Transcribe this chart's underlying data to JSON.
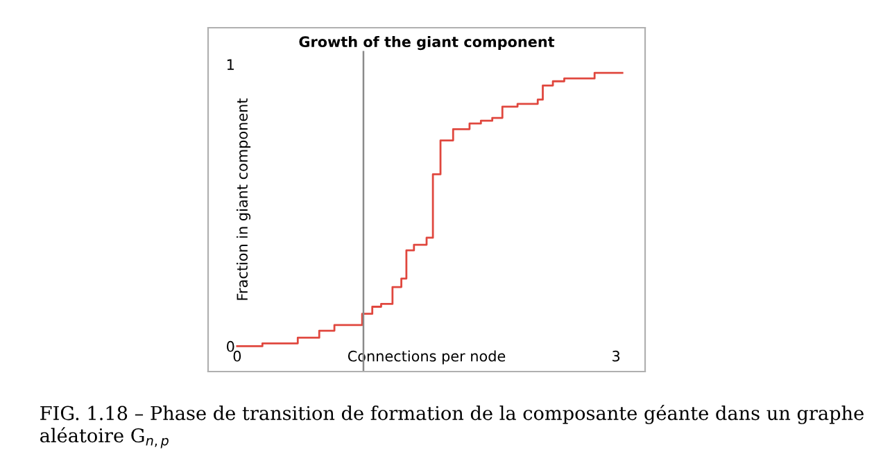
{
  "chart_data": {
    "type": "step",
    "title": "Growth of the giant component",
    "xlabel": "Connections per node",
    "ylabel": "Fraction in giant component",
    "x": [
      0,
      0.2,
      0.48,
      0.65,
      0.77,
      0.99,
      1.07,
      1.14,
      1.23,
      1.3,
      1.34,
      1.4,
      1.45,
      1.5,
      1.55,
      1.61,
      1.71,
      1.84,
      1.93,
      2.02,
      2.1,
      2.22,
      2.38,
      2.42,
      2.5,
      2.59,
      2.83,
      3.05
    ],
    "series": [
      {
        "color": "#e0473e",
        "values": [
          0,
          0.01,
          0.03,
          0.055,
          0.075,
          0.115,
          0.14,
          0.15,
          0.21,
          0.24,
          0.34,
          0.36,
          0.36,
          0.385,
          0.61,
          0.73,
          0.77,
          0.79,
          0.8,
          0.81,
          0.85,
          0.86,
          0.875,
          0.925,
          0.94,
          0.95,
          0.97,
          0.97
        ]
      }
    ],
    "xlim": [
      -0.23,
      3.23
    ],
    "ylim": [
      -0.09,
      1.13
    ],
    "xticks": [
      0,
      3
    ],
    "yticks": [
      0,
      1
    ],
    "ref_lines": [
      {
        "axis": "x",
        "value": 1,
        "color": "#8a8a8a"
      }
    ],
    "grid": false,
    "annotations": [
      "FIG. 1.18 – Phase de transition de formation de la composante géante dans un graphe aléatoire G$_{n,p}$"
    ]
  }
}
